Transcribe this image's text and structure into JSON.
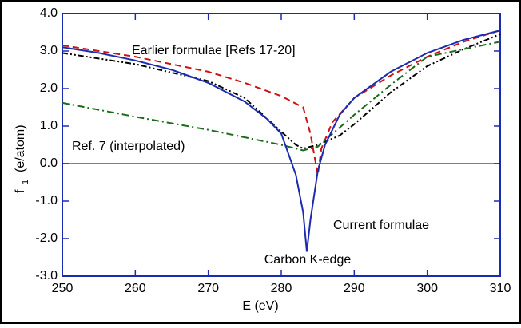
{
  "chart_data": {
    "type": "line",
    "x_label": "E  (eV)",
    "y_label": {
      "main": "f",
      "sub": "1",
      "unit": "(e/atom)"
    },
    "annotations": [
      "Earlier formulae [Refs 17-20]",
      "Ref. 7 (interpolated)",
      "Current formulae",
      "Carbon K-edge"
    ],
    "xlim": [
      250,
      310
    ],
    "xticks": [
      250,
      260,
      270,
      280,
      290,
      300,
      310
    ],
    "ylim": [
      -3,
      4
    ],
    "yticks": [
      {
        "value": -3,
        "label": "-3.0"
      },
      {
        "value": -2,
        "label": "-2.0"
      },
      {
        "value": -1,
        "label": "-1.0"
      },
      {
        "value": 0,
        "label": "0.0"
      },
      {
        "value": 1,
        "label": "1.0"
      },
      {
        "value": 2,
        "label": "2.0"
      },
      {
        "value": 3,
        "label": "3.0"
      },
      {
        "value": 4,
        "label": "4.0"
      }
    ],
    "zero_line": true,
    "series": [
      {
        "color": "#d01010",
        "dash": "8 5",
        "x": [
          250,
          260,
          270,
          275,
          280,
          283,
          284,
          285,
          285.5,
          287,
          290,
          295,
          300,
          305,
          310
        ],
        "values": [
          3.15,
          2.85,
          2.45,
          2.15,
          1.8,
          1.5,
          0.8,
          -0.3,
          0.4,
          1.1,
          1.75,
          2.35,
          2.85,
          3.25,
          3.55
        ]
      },
      {
        "color": "#000000",
        "dash": "7 3 2 3 2 3",
        "x": [
          250,
          260,
          270,
          275,
          280,
          282,
          283,
          285,
          288,
          290,
          295,
          300,
          305,
          310
        ],
        "values": [
          2.95,
          2.65,
          2.2,
          1.75,
          0.85,
          0.5,
          0.4,
          0.5,
          0.75,
          1.05,
          1.9,
          2.6,
          3.05,
          3.45
        ]
      },
      {
        "color": "#1a6b1a",
        "dash": "9 4 2 4",
        "x": [
          250,
          260,
          270,
          280,
          283,
          285,
          290,
          295,
          300,
          305,
          310
        ],
        "values": [
          1.62,
          1.25,
          0.9,
          0.5,
          0.35,
          0.45,
          1.3,
          2.1,
          2.85,
          3.05,
          3.25
        ]
      },
      {
        "color": "#1a2bb0",
        "dash": "none",
        "x": [
          250,
          255,
          260,
          265,
          270,
          275,
          278,
          280,
          282,
          283,
          283.5,
          284,
          285,
          286,
          288,
          290,
          295,
          300,
          305,
          310
        ],
        "values": [
          3.1,
          2.95,
          2.75,
          2.5,
          2.15,
          1.65,
          1.2,
          0.8,
          -0.3,
          -1.3,
          -2.35,
          -1.5,
          -0.2,
          0.5,
          1.3,
          1.75,
          2.45,
          2.95,
          3.3,
          3.55
        ]
      }
    ]
  }
}
